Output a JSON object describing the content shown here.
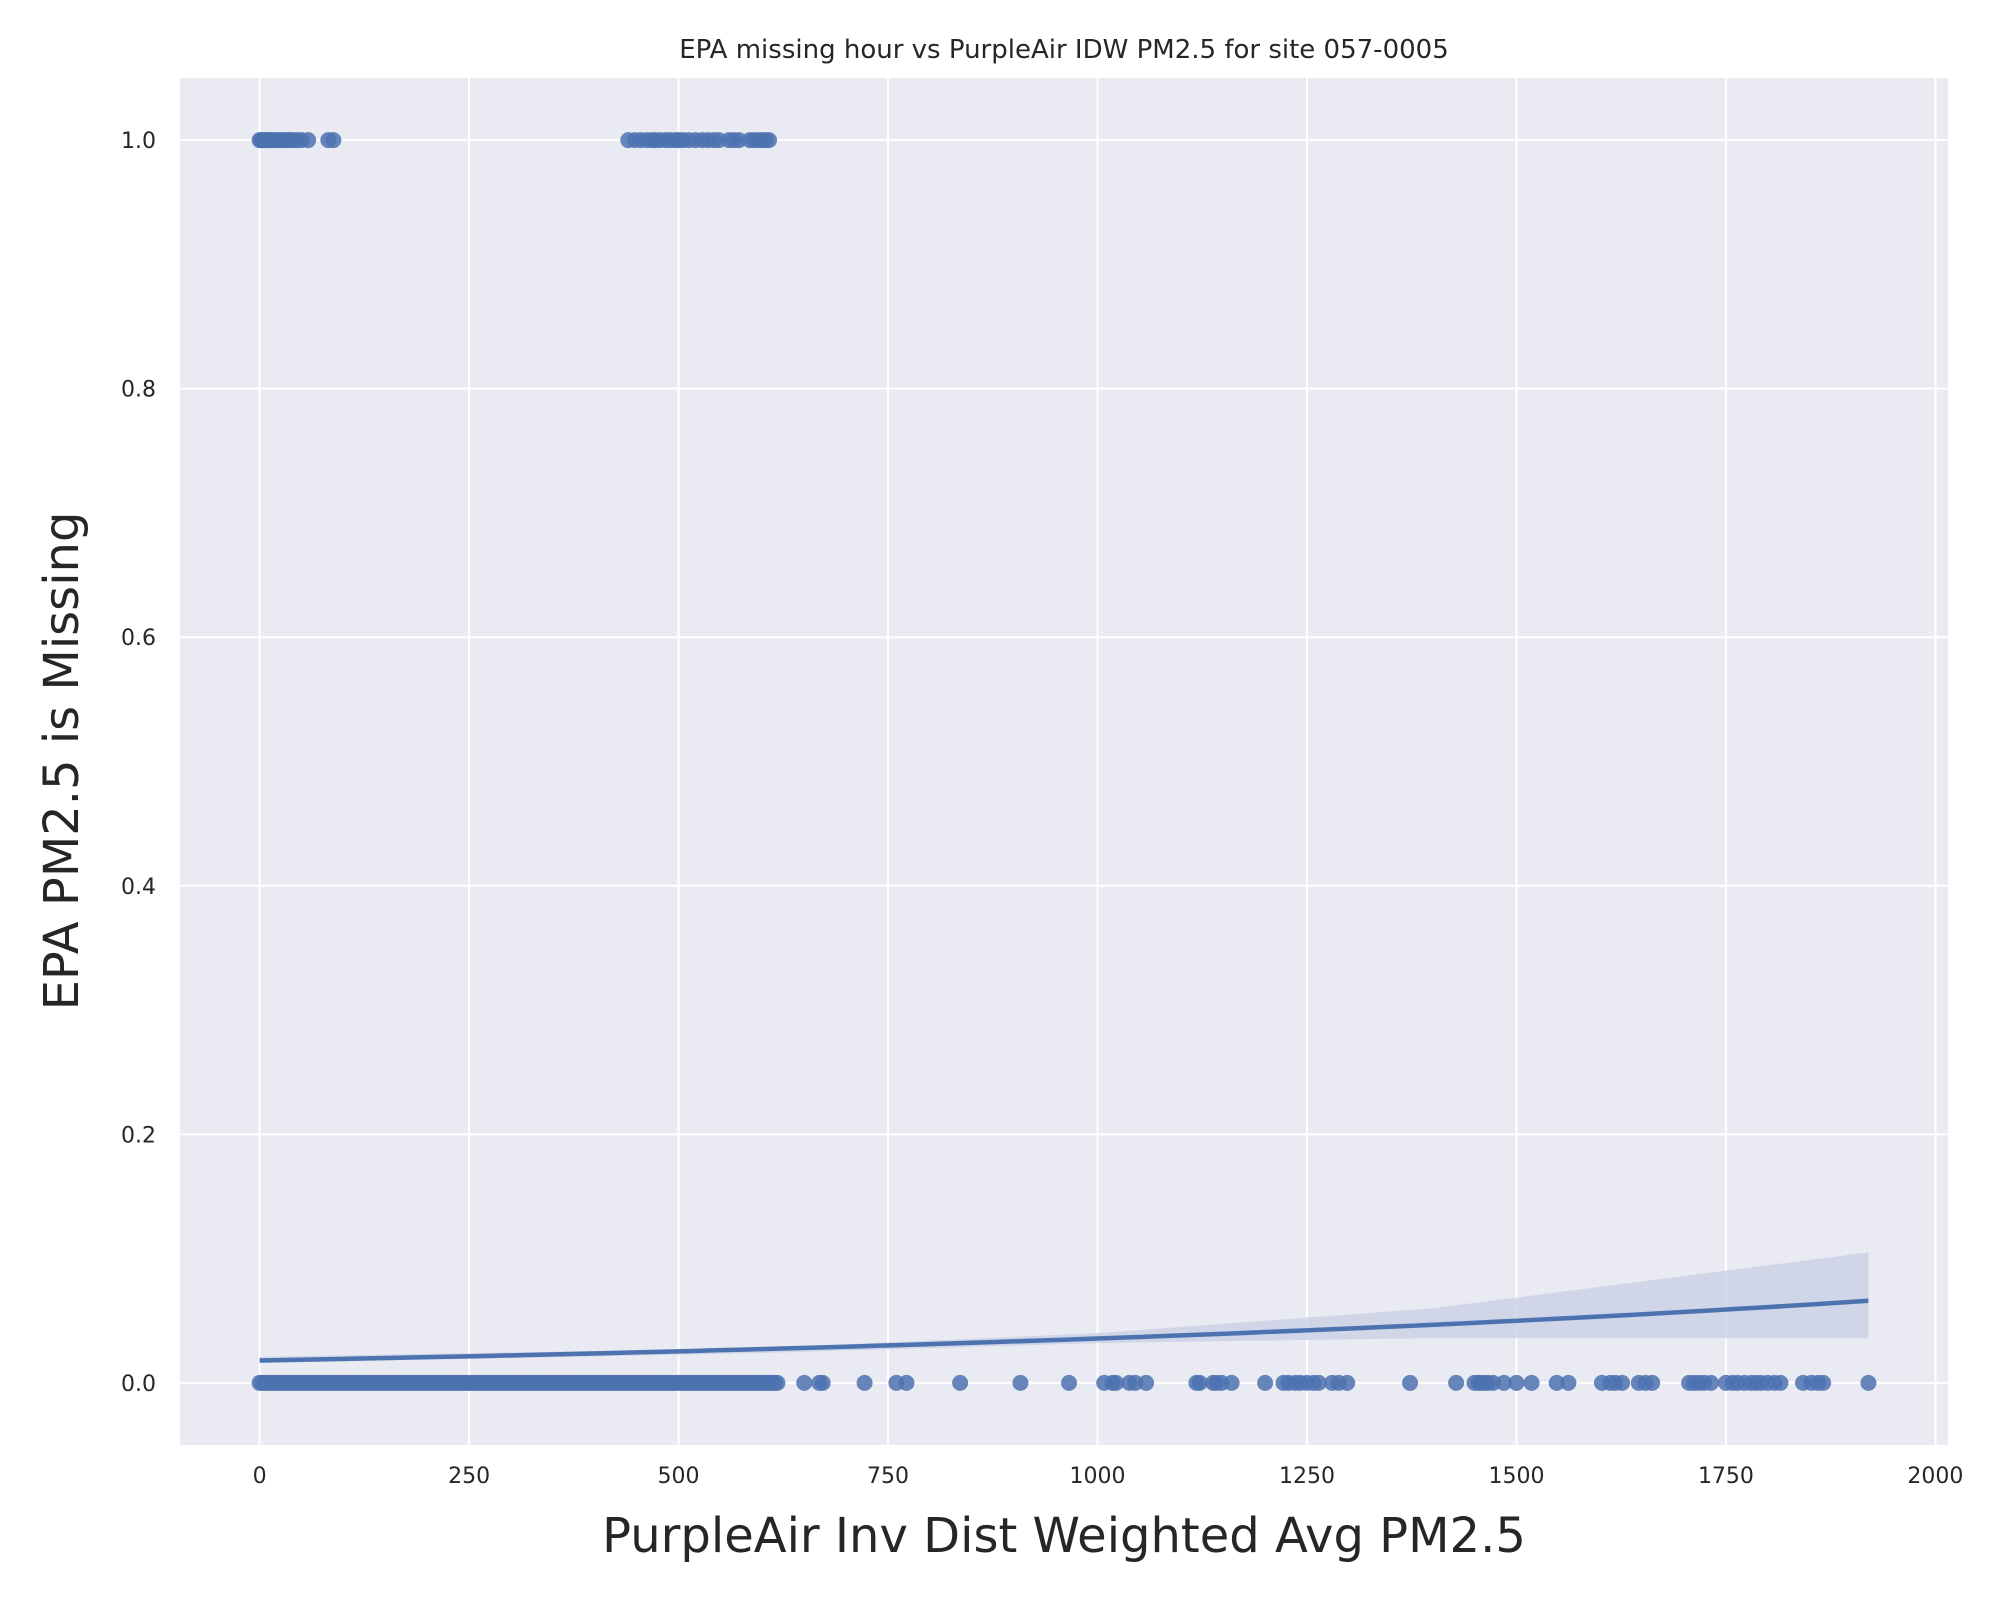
{
  "chart_data": {
    "type": "scatter",
    "title": "EPA missing hour vs PurpleAir IDW PM2.5 for site 057-0005",
    "xlabel": "PurpleAir Inv Dist Weighted Avg PM2.5",
    "ylabel": "EPA PM2.5 is Missing",
    "xlim": [
      -95,
      2015
    ],
    "ylim": [
      -0.05,
      1.05
    ],
    "xticks": [
      0,
      250,
      500,
      750,
      1000,
      1250,
      1500,
      1750,
      2000
    ],
    "yticks": [
      0.0,
      0.2,
      0.4,
      0.6,
      0.8,
      1.0
    ],
    "xtick_labels": [
      "0",
      "250",
      "500",
      "750",
      "1000",
      "1250",
      "1500",
      "1750",
      "2000"
    ],
    "ytick_labels": [
      "0.0",
      "0.2",
      "0.4",
      "0.6",
      "0.8",
      "1.0"
    ],
    "grid": true,
    "colors": {
      "points": "#4c72b0",
      "line": "#4c72b0",
      "band": "#c7cde3",
      "background": "#eaeaf2",
      "grid": "#ffffff"
    },
    "points_missing": {
      "y": 1,
      "x": [
        0,
        2,
        4,
        6,
        8,
        10,
        12,
        15,
        18,
        21,
        24,
        27,
        30,
        33,
        36,
        40,
        45,
        50,
        58,
        82,
        88,
        440,
        448,
        455,
        462,
        468,
        472,
        478,
        485,
        490,
        496,
        500,
        505,
        512,
        520,
        528,
        535,
        542,
        548,
        560,
        566,
        572,
        585,
        590,
        595,
        600,
        604,
        608
      ]
    },
    "points_present": {
      "y": 0,
      "x_dense_range": [
        0,
        620
      ],
      "x": [
        650,
        668,
        672,
        722,
        760,
        772,
        836,
        908,
        966,
        1008,
        1018,
        1022,
        1038,
        1045,
        1058,
        1118,
        1122,
        1138,
        1142,
        1148,
        1160,
        1200,
        1222,
        1228,
        1236,
        1242,
        1250,
        1258,
        1264,
        1280,
        1288,
        1298,
        1373,
        1428,
        1450,
        1455,
        1458,
        1462,
        1466,
        1472,
        1485,
        1500,
        1518,
        1548,
        1562,
        1602,
        1612,
        1618,
        1626,
        1646,
        1654,
        1662,
        1706,
        1712,
        1718,
        1724,
        1732,
        1750,
        1758,
        1764,
        1772,
        1780,
        1786,
        1792,
        1800,
        1808,
        1815,
        1842,
        1852,
        1860,
        1866,
        1920
      ]
    },
    "fit_line": {
      "x": [
        0,
        1920
      ],
      "y": [
        0.018,
        0.066
      ]
    },
    "confidence_band": {
      "x": [
        0,
        600,
        1000,
        1400,
        1920
      ],
      "upper": [
        0.021,
        0.028,
        0.04,
        0.06,
        0.105
      ],
      "lower": [
        0.016,
        0.024,
        0.032,
        0.036,
        0.036
      ]
    }
  }
}
